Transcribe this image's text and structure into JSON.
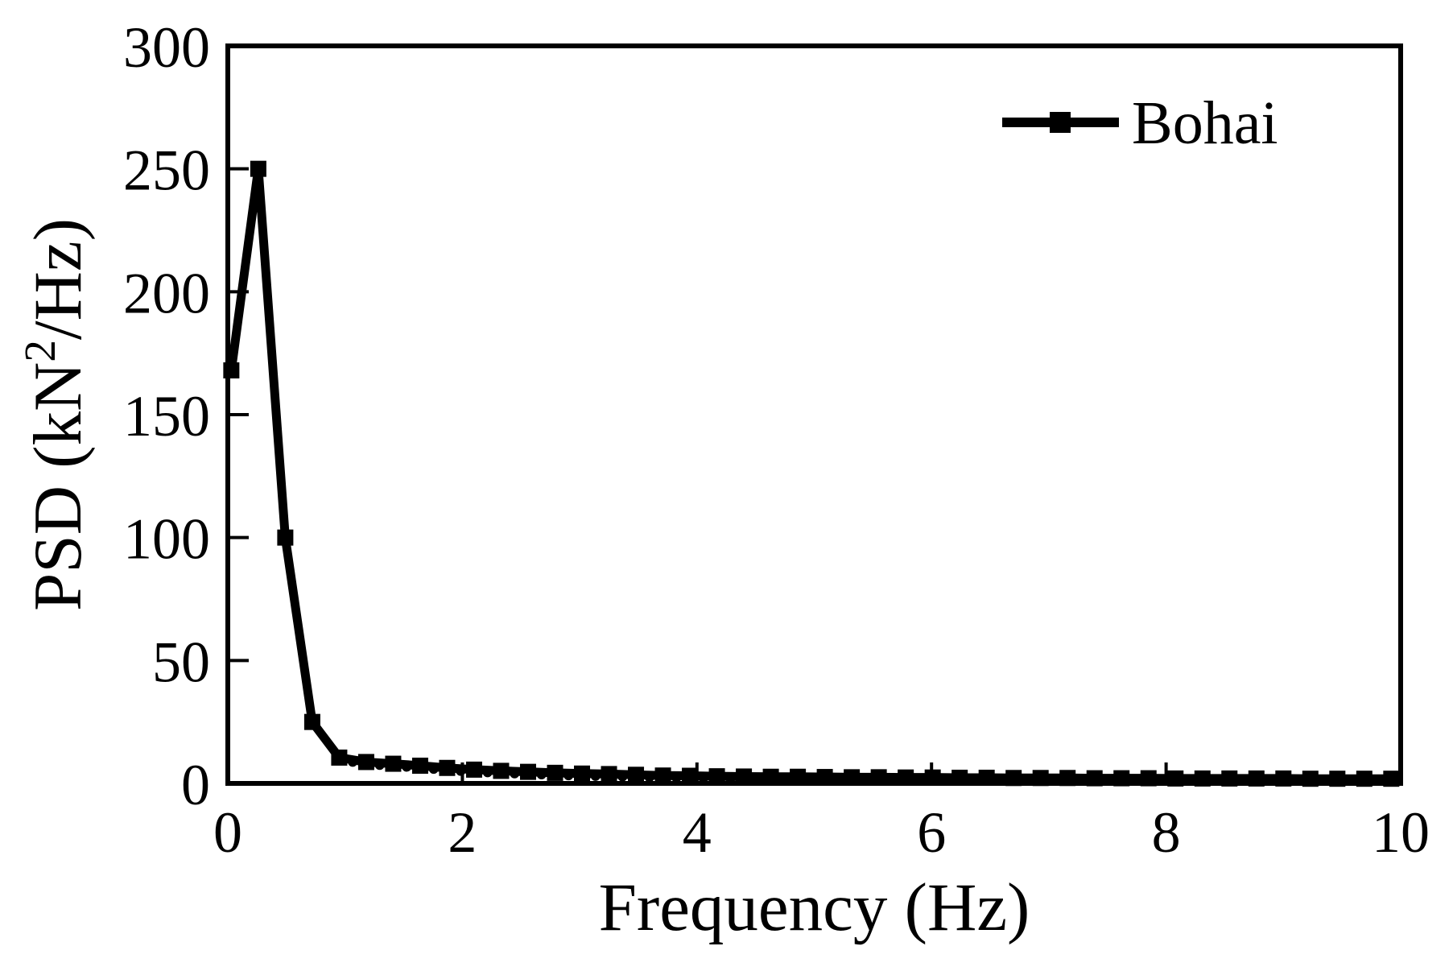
{
  "figure_title": "",
  "chart_data": {
    "type": "line",
    "title": "",
    "xlabel": "Frequency (Hz)",
    "ylabel": "PSD (kN²/Hz)",
    "ylabel_parts": {
      "pre": "PSD (kN",
      "sup": "2",
      "post": "/Hz)"
    },
    "xlim": [
      0,
      10
    ],
    "ylim": [
      0,
      300
    ],
    "xticks": [
      0,
      2,
      4,
      6,
      8,
      10
    ],
    "yticks": [
      0,
      50,
      100,
      150,
      200,
      250,
      300
    ],
    "grid": false,
    "colors": {
      "foreground": "#000000",
      "background": "#ffffff"
    },
    "legend": {
      "position": "top-right",
      "entries": [
        {
          "label": "Bohai",
          "marker": "square",
          "line": "solid",
          "color": "#000000"
        }
      ]
    },
    "series": [
      {
        "name": "Bohai",
        "color": "#000000",
        "marker": "square",
        "x": [
          0.03,
          0.26,
          0.49,
          0.72,
          0.95,
          1.18,
          1.41,
          1.64,
          1.87,
          2.1,
          2.33,
          2.56,
          2.79,
          3.02,
          3.25,
          3.48,
          3.71,
          3.94,
          4.17,
          4.4,
          4.63,
          4.86,
          5.09,
          5.32,
          5.55,
          5.78,
          6.01,
          6.24,
          6.47,
          6.7,
          6.93,
          7.16,
          7.39,
          7.62,
          7.85,
          8.08,
          8.31,
          8.54,
          8.77,
          9.0,
          9.23,
          9.46,
          9.69,
          9.92
        ],
        "y": [
          168,
          250,
          100,
          25,
          10.5,
          8.7,
          8.0,
          7.2,
          6.3,
          5.6,
          5.1,
          4.7,
          4.3,
          4.0,
          3.8,
          3.5,
          3.2,
          3.1,
          2.9,
          2.8,
          2.7,
          2.7,
          2.6,
          2.5,
          2.5,
          2.4,
          2.4,
          2.3,
          2.3,
          2.2,
          2.2,
          2.2,
          2.1,
          2.1,
          2.1,
          2.0,
          2.0,
          2.0,
          2.0,
          2.0,
          1.9,
          1.9,
          1.9,
          1.9
        ],
        "sub_points": {
          "x": [
            1.065,
            1.295,
            1.525,
            1.755,
            1.985,
            2.215,
            2.445,
            2.675,
            2.905,
            3.135,
            3.365,
            3.595,
            3.825,
            4.055,
            4.285,
            4.515,
            4.745,
            4.975,
            5.205,
            5.435,
            5.665,
            5.895,
            6.125,
            6.355,
            6.585,
            6.815,
            7.045,
            7.275,
            7.505,
            7.735,
            7.965,
            8.195,
            8.425,
            8.655,
            8.885,
            9.115,
            9.345,
            9.575,
            9.805
          ],
          "y": [
            8.7,
            7.45,
            6.7,
            5.85,
            5.05,
            4.45,
            4.0,
            3.6,
            3.25,
            3.0,
            2.75,
            2.45,
            2.25,
            2.1,
            1.95,
            1.85,
            1.8,
            1.75,
            1.65,
            1.6,
            1.55,
            1.5,
            1.45,
            1.4,
            1.35,
            1.3,
            1.3,
            1.25,
            1.2,
            1.2,
            1.15,
            1.1,
            1.1,
            1.1,
            1.1,
            1.05,
            1.0,
            1.0,
            1.0
          ]
        }
      }
    ]
  }
}
